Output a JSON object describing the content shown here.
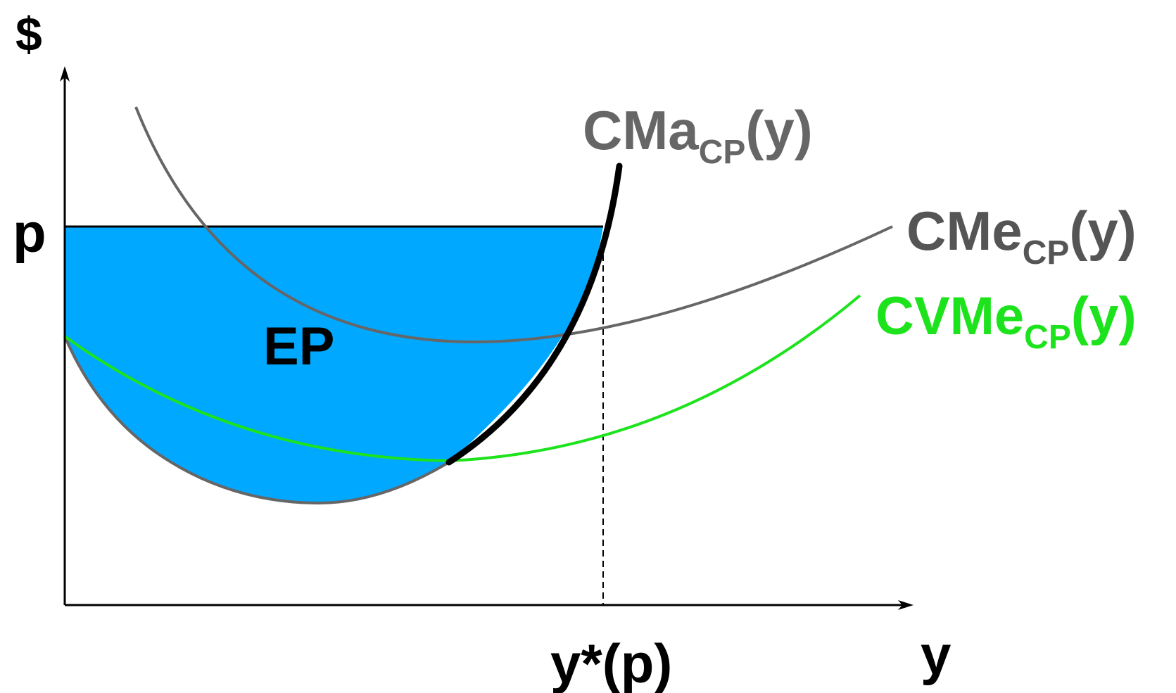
{
  "axes": {
    "y_axis_label": "$",
    "x_axis_label": "y"
  },
  "price_label": "p",
  "output_label": "y*(p)",
  "area_label": "EP",
  "curves": {
    "marginal_cost": {
      "main": "CMa",
      "sub": "CP",
      "tail": "(y)"
    },
    "average_cost": {
      "main": "CMe",
      "sub": "CP",
      "tail": "(y)"
    },
    "average_variable_cost": {
      "main": "CVMe",
      "sub": "CP",
      "tail": "(y)"
    }
  },
  "colors": {
    "area_fill": "#00a8ff",
    "average_cost": "#666666",
    "average_variable_cost": "#1de31d",
    "supply_curve": "#000000",
    "axes": "#000000"
  }
}
